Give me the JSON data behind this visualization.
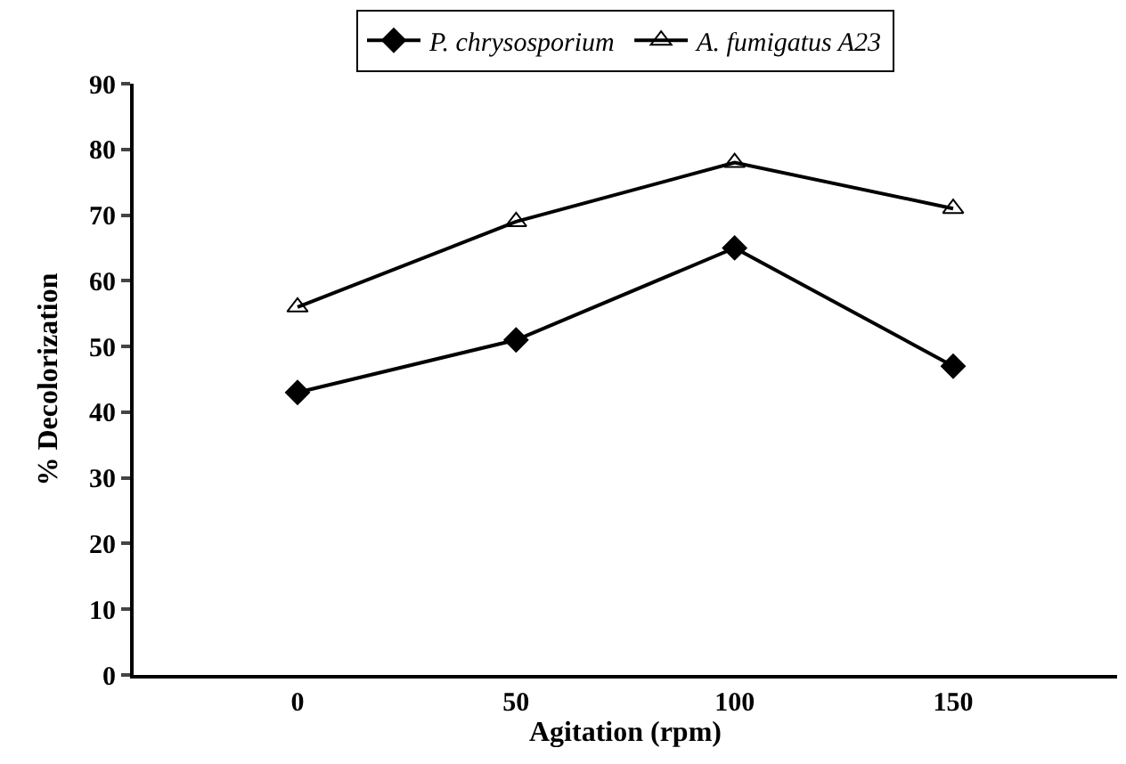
{
  "chart_data": {
    "type": "line",
    "xlabel": "Agitation (rpm)",
    "ylabel": "% Decolorization",
    "categories": [
      "0",
      "50",
      "100",
      "150"
    ],
    "series": [
      {
        "name": "P. chrysosporium",
        "color": "#000000",
        "marker": "diamond",
        "values": [
          43,
          51,
          65,
          47
        ]
      },
      {
        "name": "A. fumigatus A23",
        "color": "#000000",
        "marker": "triangle",
        "values": [
          56,
          69,
          78,
          71
        ]
      }
    ],
    "ylim": [
      0,
      90
    ],
    "yticks": [
      0,
      10,
      20,
      30,
      40,
      50,
      60,
      70,
      80,
      90
    ],
    "grid": false,
    "legend": "top",
    "line_style": "solid"
  }
}
